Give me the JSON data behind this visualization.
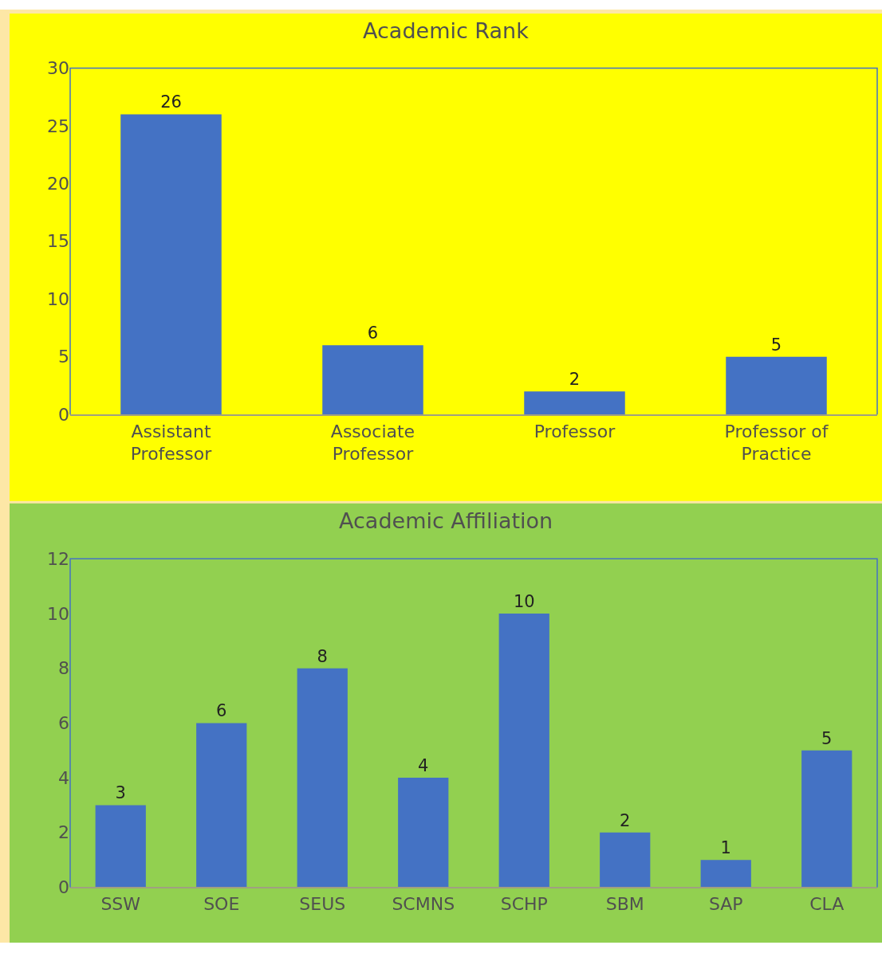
{
  "chart_data": [
    {
      "type": "bar",
      "title": "Academic Rank",
      "categories": [
        "Assistant Professor",
        "Associate Professor",
        "Professor",
        "Professor of Practice"
      ],
      "values": [
        26,
        6,
        2,
        5
      ],
      "color": "#4472c4",
      "ylim": [
        0,
        30
      ],
      "yticks": [
        0,
        5,
        10,
        15,
        20,
        25,
        30
      ],
      "data_labels": true,
      "grid": false
    },
    {
      "type": "bar",
      "title": "Academic Affiliation",
      "categories": [
        "SSW",
        "SOE",
        "SEUS",
        "SCMNS",
        "SCHP",
        "SBM",
        "SAP",
        "CLA"
      ],
      "values": [
        3,
        6,
        8,
        4,
        10,
        2,
        1,
        5
      ],
      "color": "#4472c4",
      "ylim": [
        0,
        12
      ],
      "yticks": [
        0,
        2,
        4,
        6,
        8,
        10,
        12
      ],
      "data_labels": true,
      "grid": false
    }
  ]
}
